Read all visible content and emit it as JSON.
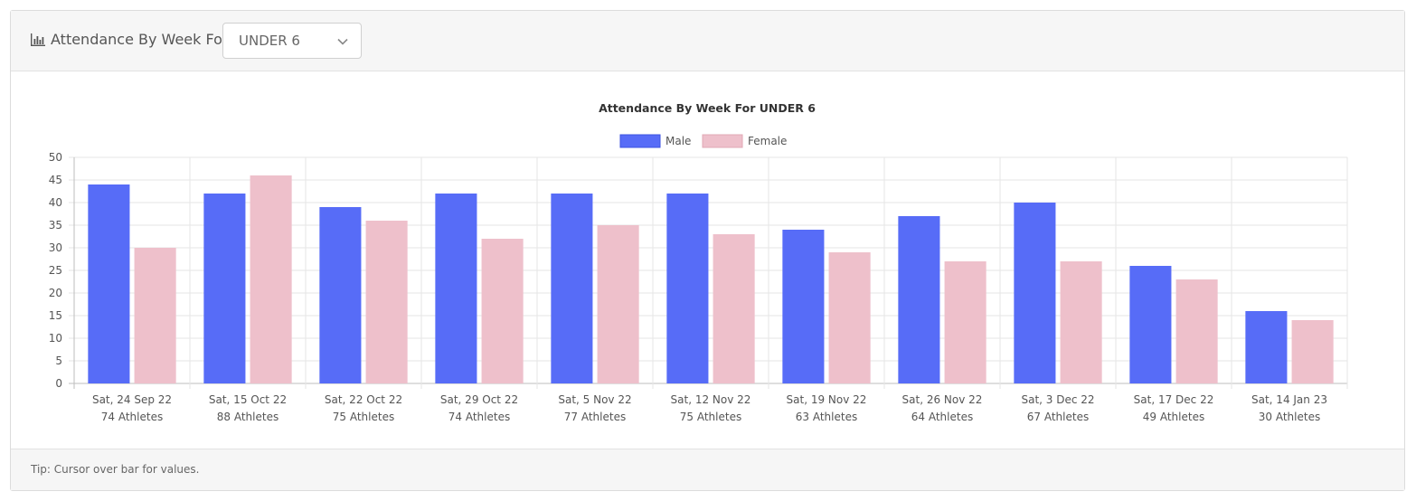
{
  "header": {
    "icon": "bar-chart-icon",
    "title": "Attendance By Week For",
    "select_value": "UNDER 6",
    "chevron_icon": "chevron-down-icon"
  },
  "footer": {
    "tip": "Tip: Cursor over bar for values."
  },
  "colors": {
    "male": "#576cf7",
    "female": "#eec0cb"
  },
  "chart_data": {
    "type": "bar",
    "title": "Attendance By Week For UNDER 6",
    "categories": [
      "Sat, 24 Sep 22",
      "Sat, 15 Oct 22",
      "Sat, 22 Oct 22",
      "Sat, 29 Oct 22",
      "Sat, 5 Nov 22",
      "Sat, 12 Nov 22",
      "Sat, 19 Nov 22",
      "Sat, 26 Nov 22",
      "Sat, 3 Dec 22",
      "Sat, 17 Dec 22",
      "Sat, 14 Jan 23"
    ],
    "category_sublabels": [
      "74 Athletes",
      "88 Athletes",
      "75 Athletes",
      "74 Athletes",
      "77 Athletes",
      "75 Athletes",
      "63 Athletes",
      "64 Athletes",
      "67 Athletes",
      "49 Athletes",
      "30 Athletes"
    ],
    "series": [
      {
        "name": "Male",
        "values": [
          44,
          42,
          39,
          42,
          42,
          42,
          34,
          37,
          40,
          26,
          16
        ]
      },
      {
        "name": "Female",
        "values": [
          30,
          46,
          36,
          32,
          35,
          33,
          29,
          27,
          27,
          23,
          14
        ]
      }
    ],
    "ylim": [
      0,
      50
    ],
    "yticks": [
      0,
      5,
      10,
      15,
      20,
      25,
      30,
      35,
      40,
      45,
      50
    ],
    "legend_position": "top",
    "grid": true
  }
}
